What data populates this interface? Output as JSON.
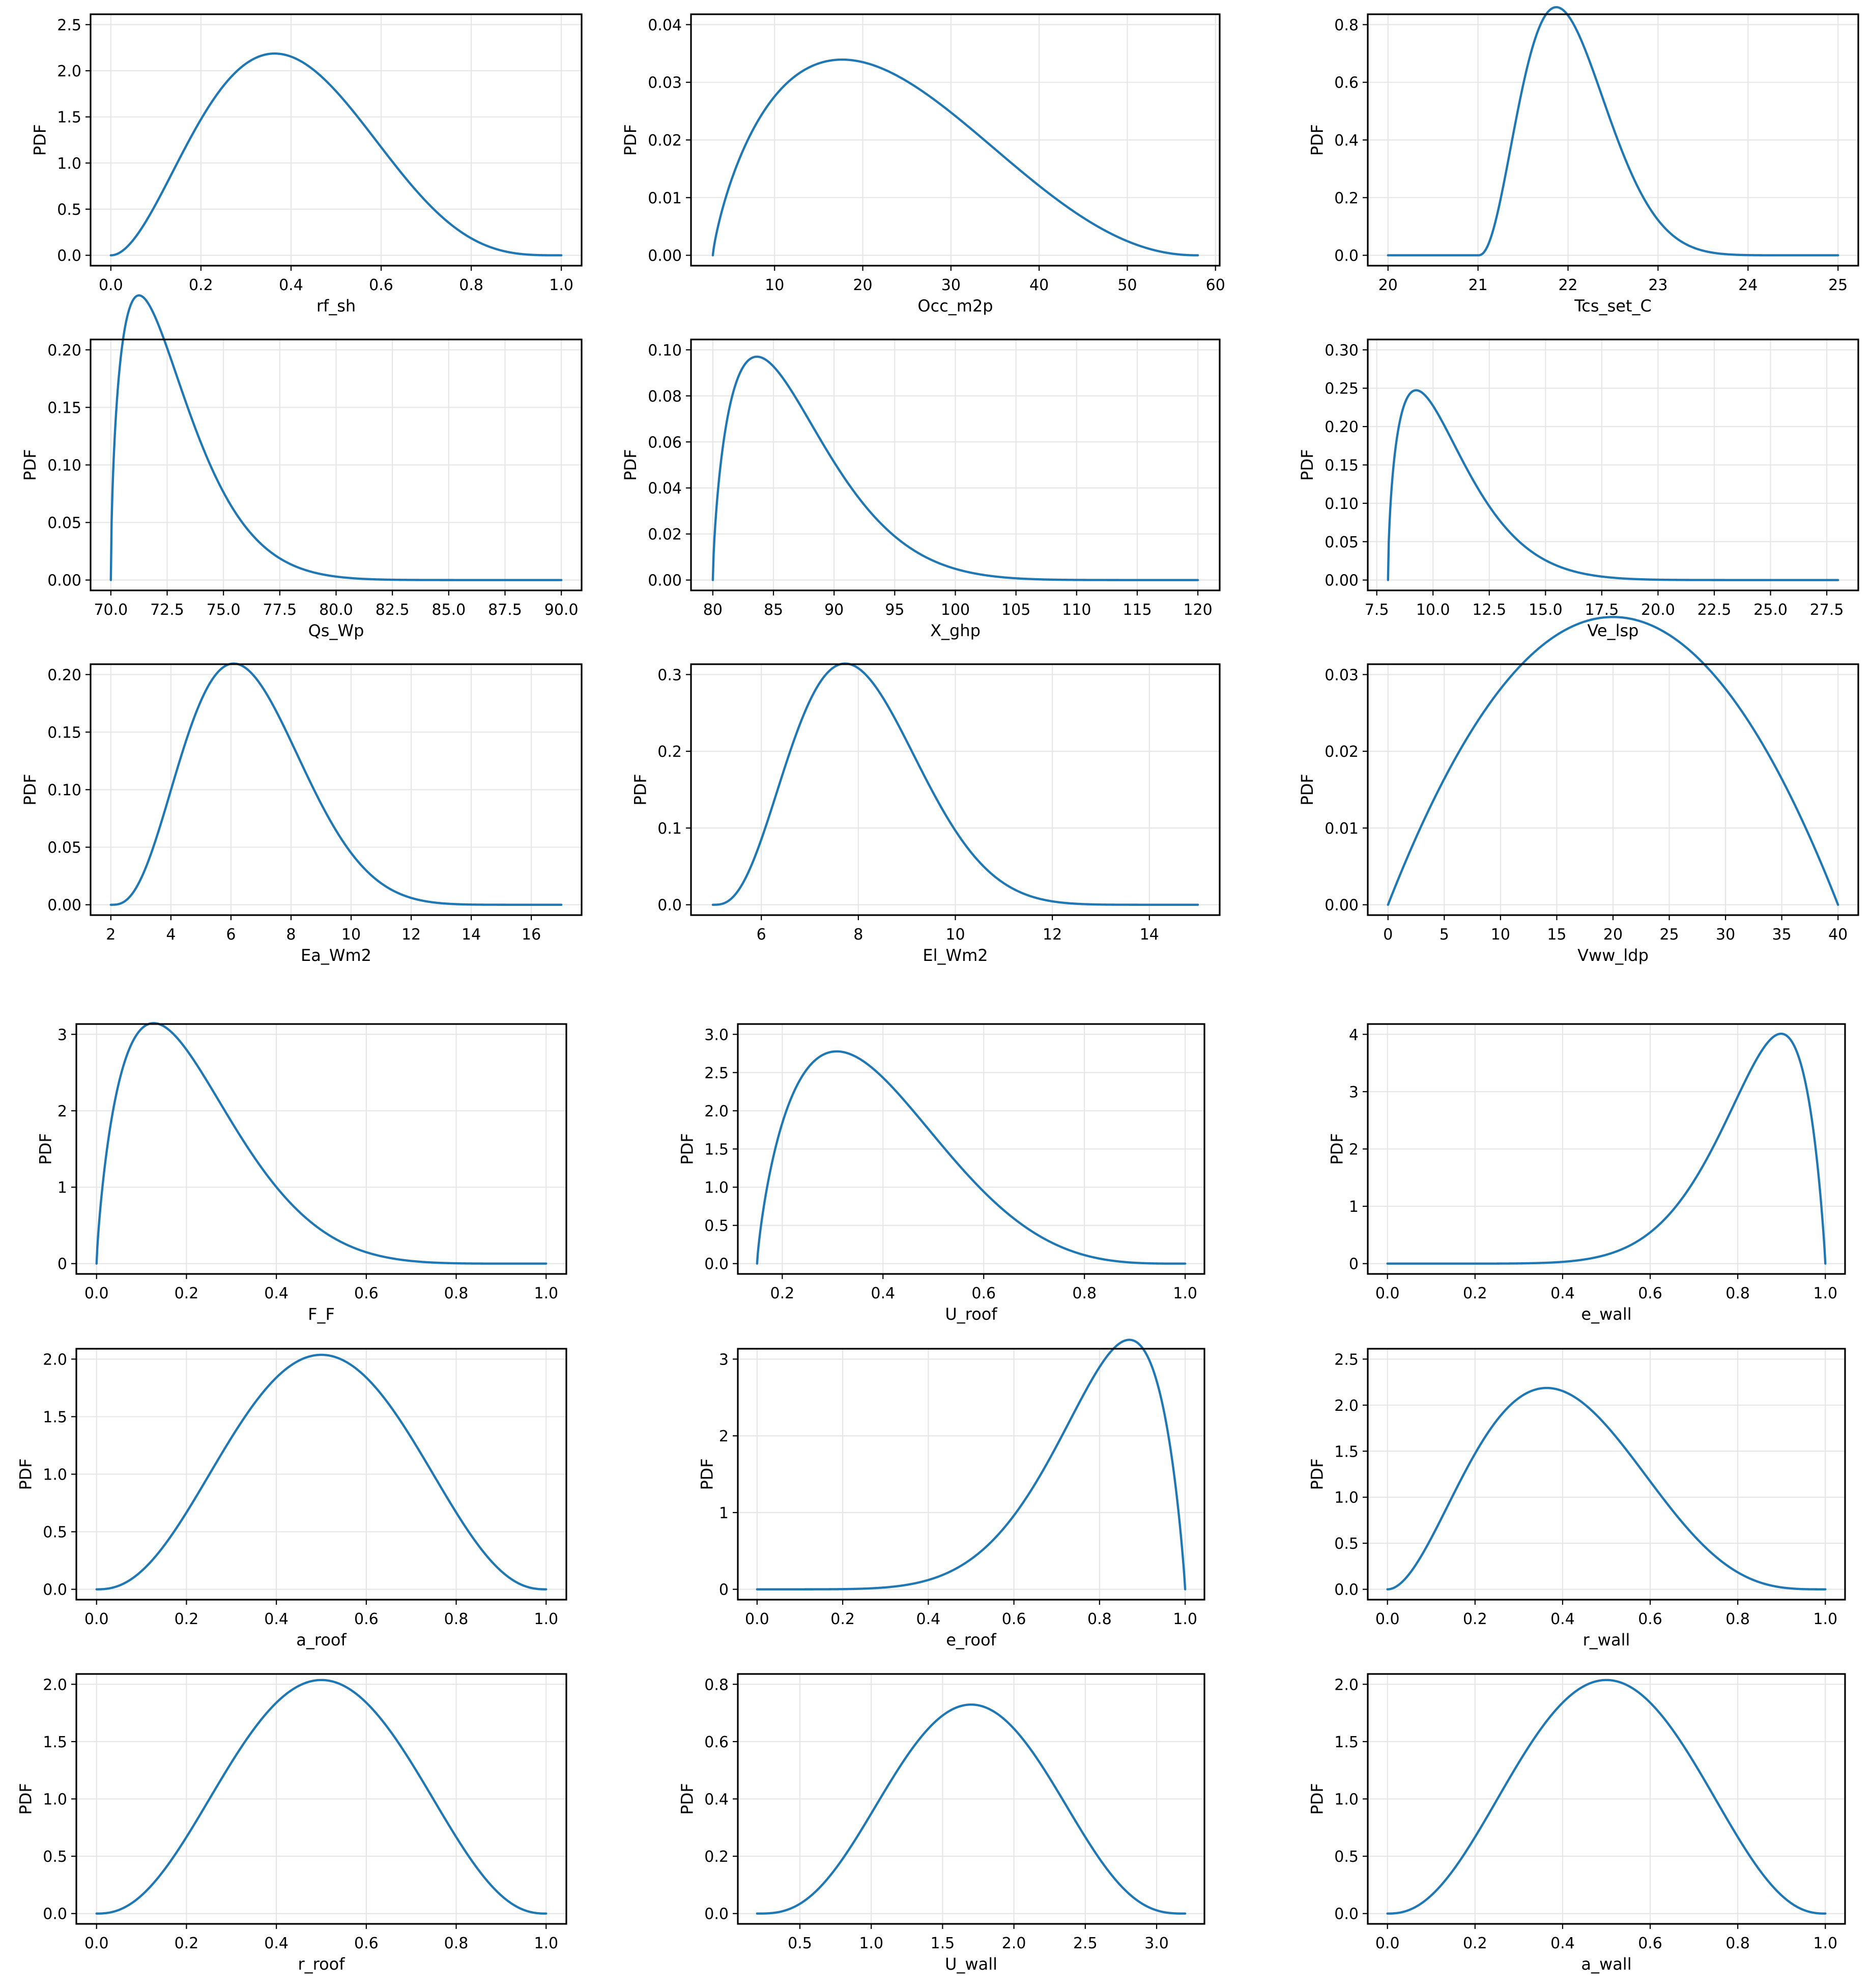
{
  "style": {
    "line_color": "#1f77b4",
    "grid_color": "#e6e6e6",
    "grid": true
  },
  "chart_data": [
    {
      "type": "line",
      "xlabel": "rf_sh",
      "ylabel": "PDF",
      "dist": {
        "kind": "beta",
        "a": 3,
        "b": 4.5,
        "lo": 0,
        "hi": 1
      },
      "xlim": [
        0,
        1
      ],
      "xticks": [
        "0.0",
        "0.2",
        "0.4",
        "0.6",
        "0.8",
        "1.0"
      ],
      "yticks": [
        "0.0",
        "0.5",
        "1.0",
        "1.5",
        "2.0",
        "2.5"
      ]
    },
    {
      "type": "line",
      "xlabel": "Occ_m2p",
      "ylabel": "PDF",
      "dist": {
        "kind": "beta",
        "a": 1.8,
        "b": 3.2,
        "lo": 3,
        "hi": 58
      },
      "xlim": [
        3,
        58
      ],
      "xticks": [
        "10",
        "20",
        "30",
        "40",
        "50",
        "60"
      ],
      "yticks": [
        "0.00",
        "0.01",
        "0.02",
        "0.03",
        "0.04"
      ]
    },
    {
      "type": "line",
      "xlabel": "Tcs_set_C",
      "ylabel": "PDF",
      "dist": {
        "kind": "beta",
        "a": 3.5,
        "b": 10,
        "lo": 21,
        "hi": 25
      },
      "xlim": [
        20,
        25
      ],
      "xticks": [
        "20",
        "21",
        "22",
        "23",
        "24",
        "25"
      ],
      "yticks": [
        "0.0",
        "0.2",
        "0.4",
        "0.6",
        "0.8"
      ]
    },
    {
      "type": "line",
      "xlabel": "Qs_Wp",
      "ylabel": "PDF",
      "dist": {
        "kind": "beta",
        "a": 1.6,
        "b": 10,
        "lo": 70,
        "hi": 90
      },
      "xlim": [
        70,
        90
      ],
      "xticks": [
        "70.0",
        "72.5",
        "75.0",
        "77.5",
        "80.0",
        "82.5",
        "85.0",
        "87.5",
        "90.0"
      ],
      "yticks": [
        "0.00",
        "0.05",
        "0.10",
        "0.15",
        "0.20"
      ]
    },
    {
      "type": "line",
      "xlabel": "X_ghp",
      "ylabel": "PDF",
      "dist": {
        "kind": "beta",
        "a": 1.7,
        "b": 8,
        "lo": 80,
        "hi": 120
      },
      "xlim": [
        80,
        120
      ],
      "xticks": [
        "80",
        "85",
        "90",
        "95",
        "100",
        "105",
        "110",
        "115",
        "120"
      ],
      "yticks": [
        "0.00",
        "0.02",
        "0.04",
        "0.06",
        "0.08",
        "0.10"
      ]
    },
    {
      "type": "line",
      "xlabel": "Ve_lsp",
      "ylabel": "PDF",
      "dist": {
        "kind": "beta",
        "a": 1.6,
        "b": 10,
        "lo": 8,
        "hi": 28
      },
      "xlim": [
        8,
        28
      ],
      "xticks": [
        "7.5",
        "10.0",
        "12.5",
        "15.0",
        "17.5",
        "20.0",
        "22.5",
        "25.0",
        "27.5"
      ],
      "yticks": [
        "0.00",
        "0.05",
        "0.10",
        "0.15",
        "0.20",
        "0.25",
        "0.30"
      ]
    },
    {
      "type": "line",
      "xlabel": "Ea_Wm2",
      "ylabel": "PDF",
      "dist": {
        "kind": "beta",
        "a": 4,
        "b": 9,
        "lo": 2,
        "hi": 17
      },
      "xlim": [
        2,
        17
      ],
      "xticks": [
        "2",
        "4",
        "6",
        "8",
        "10",
        "12",
        "14",
        "16"
      ],
      "yticks": [
        "0.00",
        "0.05",
        "0.10",
        "0.15",
        "0.20"
      ]
    },
    {
      "type": "line",
      "xlabel": "El_Wm2",
      "ylabel": "PDF",
      "dist": {
        "kind": "beta",
        "a": 4,
        "b": 9,
        "lo": 5,
        "hi": 15
      },
      "xlim": [
        5,
        15
      ],
      "xticks": [
        "6",
        "8",
        "10",
        "12",
        "14"
      ],
      "yticks": [
        "0.0",
        "0.1",
        "0.2",
        "0.3"
      ]
    },
    {
      "type": "line",
      "xlabel": "Vww_ldp",
      "ylabel": "PDF",
      "dist": {
        "kind": "beta",
        "a": 2,
        "b": 2,
        "lo": 0,
        "hi": 40
      },
      "xlim": [
        0,
        40
      ],
      "xticks": [
        "0",
        "5",
        "10",
        "15",
        "20",
        "25",
        "30",
        "35",
        "40"
      ],
      "yticks": [
        "0.00",
        "0.01",
        "0.02",
        "0.03"
      ]
    },
    {
      "type": "line",
      "xlabel": "F_F",
      "ylabel": "PDF",
      "dist": {
        "kind": "beta",
        "a": 1.8,
        "b": 6.5,
        "lo": 0,
        "hi": 1
      },
      "xlim": [
        0,
        1
      ],
      "xticks": [
        "0.0",
        "0.2",
        "0.4",
        "0.6",
        "0.8",
        "1.0"
      ],
      "yticks": [
        "0",
        "1",
        "2",
        "3"
      ]
    },
    {
      "type": "line",
      "xlabel": "U_roof",
      "ylabel": "PDF",
      "dist": {
        "kind": "beta",
        "a": 1.8,
        "b": 4.5,
        "lo": 0.15,
        "hi": 1
      },
      "xlim": [
        0.15,
        1
      ],
      "xticks": [
        "0.2",
        "0.4",
        "0.6",
        "0.8",
        "1.0"
      ],
      "yticks": [
        "0.0",
        "0.5",
        "1.0",
        "1.5",
        "2.0",
        "2.5",
        "3.0"
      ]
    },
    {
      "type": "line",
      "xlabel": "e_wall",
      "ylabel": "PDF",
      "dist": {
        "kind": "beta",
        "a": 9,
        "b": 1.9,
        "lo": 0,
        "hi": 1
      },
      "xlim": [
        0,
        1
      ],
      "xticks": [
        "0.0",
        "0.2",
        "0.4",
        "0.6",
        "0.8",
        "1.0"
      ],
      "yticks": [
        "0",
        "1",
        "2",
        "3",
        "4"
      ]
    },
    {
      "type": "line",
      "xlabel": "a_roof",
      "ylabel": "PDF",
      "dist": {
        "kind": "beta",
        "a": 3.5,
        "b": 3.5,
        "lo": 0,
        "hi": 1
      },
      "xlim": [
        0,
        1
      ],
      "xticks": [
        "0.0",
        "0.2",
        "0.4",
        "0.6",
        "0.8",
        "1.0"
      ],
      "yticks": [
        "0.0",
        "0.5",
        "1.0",
        "1.5",
        "2.0"
      ]
    },
    {
      "type": "line",
      "xlabel": "e_roof",
      "ylabel": "PDF",
      "dist": {
        "kind": "beta",
        "a": 7,
        "b": 1.9,
        "lo": 0,
        "hi": 1
      },
      "xlim": [
        0,
        1
      ],
      "xticks": [
        "0.0",
        "0.2",
        "0.4",
        "0.6",
        "0.8",
        "1.0"
      ],
      "yticks": [
        "0",
        "1",
        "2",
        "3"
      ]
    },
    {
      "type": "line",
      "xlabel": "r_wall",
      "ylabel": "PDF",
      "dist": {
        "kind": "beta",
        "a": 3,
        "b": 4.5,
        "lo": 0,
        "hi": 1
      },
      "xlim": [
        0,
        1
      ],
      "xticks": [
        "0.0",
        "0.2",
        "0.4",
        "0.6",
        "0.8",
        "1.0"
      ],
      "yticks": [
        "0.0",
        "0.5",
        "1.0",
        "1.5",
        "2.0",
        "2.5"
      ]
    },
    {
      "type": "line",
      "xlabel": "r_roof",
      "ylabel": "PDF",
      "dist": {
        "kind": "beta",
        "a": 3.5,
        "b": 3.5,
        "lo": 0,
        "hi": 1
      },
      "xlim": [
        0,
        1
      ],
      "xticks": [
        "0.0",
        "0.2",
        "0.4",
        "0.6",
        "0.8",
        "1.0"
      ],
      "yticks": [
        "0.0",
        "0.5",
        "1.0",
        "1.5",
        "2.0"
      ]
    },
    {
      "type": "line",
      "xlabel": "U_wall",
      "ylabel": "PDF",
      "dist": {
        "kind": "beta",
        "a": 4,
        "b": 4,
        "lo": 0.2,
        "hi": 3.2
      },
      "xlim": [
        0.2,
        3.2
      ],
      "xticks": [
        "0.5",
        "1.0",
        "1.5",
        "2.0",
        "2.5",
        "3.0"
      ],
      "yticks": [
        "0.0",
        "0.2",
        "0.4",
        "0.6",
        "0.8"
      ]
    },
    {
      "type": "line",
      "xlabel": "a_wall",
      "ylabel": "PDF",
      "dist": {
        "kind": "beta",
        "a": 3.5,
        "b": 3.5,
        "lo": 0,
        "hi": 1
      },
      "xlim": [
        0,
        1
      ],
      "xticks": [
        "0.0",
        "0.2",
        "0.4",
        "0.6",
        "0.8",
        "1.0"
      ],
      "yticks": [
        "0.0",
        "0.5",
        "1.0",
        "1.5",
        "2.0"
      ]
    }
  ]
}
